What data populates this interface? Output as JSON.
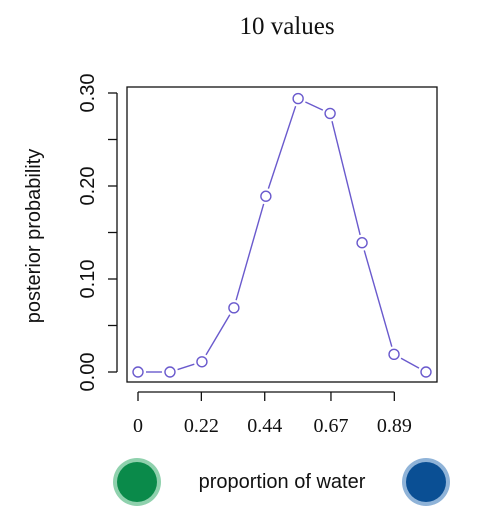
{
  "chart_data": {
    "type": "line",
    "title": "10 values",
    "xlabel": "proportion of water",
    "ylabel": "posterior probability",
    "x": [
      0,
      0.111,
      0.222,
      0.333,
      0.444,
      0.556,
      0.667,
      0.778,
      0.889,
      1.0
    ],
    "values": [
      0.0,
      0.0,
      0.011,
      0.069,
      0.189,
      0.294,
      0.278,
      0.139,
      0.019,
      0.0
    ],
    "xticks": [
      0,
      0.22,
      0.44,
      0.67,
      0.89
    ],
    "xtick_labels": [
      "0",
      "0.22",
      "0.44",
      "0.67",
      "0.89"
    ],
    "yticks": [
      0,
      0.1,
      0.2,
      0.3
    ],
    "ytick_labels": [
      "0.00",
      "0.10",
      "0.20",
      "0.30"
    ],
    "ylim": [
      0,
      0.3
    ],
    "grid": false,
    "line_color": "#6a5acd",
    "marker": "open-circle"
  },
  "legend": {
    "left_circle_color": "#0a8a4a",
    "left_ring_color": "#8fd1ad",
    "right_circle_color": "#0a4f94",
    "right_ring_color": "#8fb3d8"
  }
}
